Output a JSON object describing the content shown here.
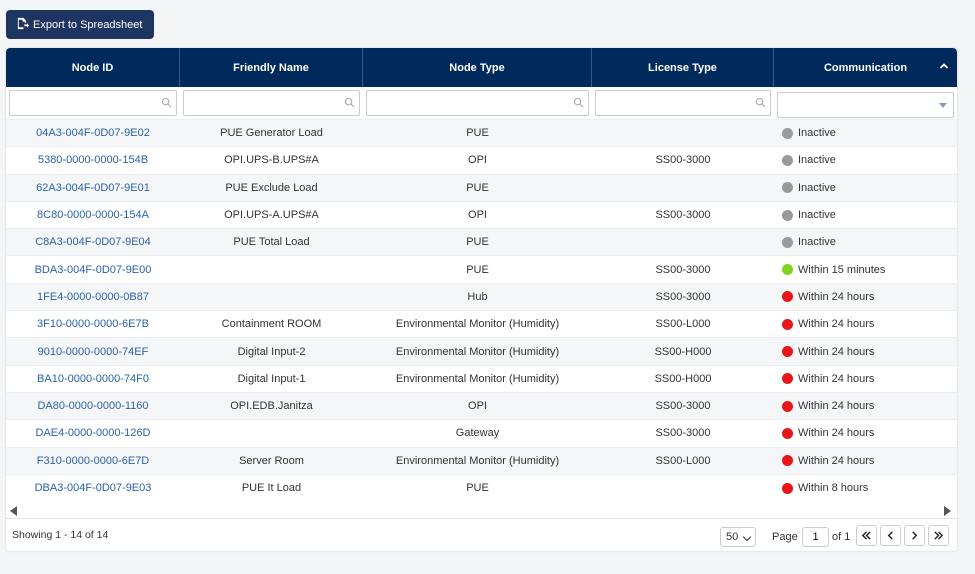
{
  "toolbar": {
    "export_label": "Export to Spreadsheet"
  },
  "columns": [
    {
      "label": "Node ID"
    },
    {
      "label": "Friendly Name"
    },
    {
      "label": "Node Type"
    },
    {
      "label": "License Type"
    },
    {
      "label": "Communication"
    }
  ],
  "status_colors": {
    "Inactive": "#9a9a9a",
    "Within 15 minutes": "#7ed321",
    "Within 24 hours": "#e8161b",
    "Within 8 hours": "#e8161b"
  },
  "rows": [
    {
      "node_id": "04A3-004F-0D07-9E02",
      "friendly_name": "PUE Generator Load",
      "node_type": "PUE",
      "license_type": "",
      "communication": "Inactive",
      "color": "#9a9a9a"
    },
    {
      "node_id": "5380-0000-0000-154B",
      "friendly_name": "OPI.UPS-B.UPS#A",
      "node_type": "OPI",
      "license_type": "SS00-3000",
      "communication": "Inactive",
      "color": "#9a9a9a"
    },
    {
      "node_id": "62A3-004F-0D07-9E01",
      "friendly_name": "PUE Exclude Load",
      "node_type": "PUE",
      "license_type": "",
      "communication": "Inactive",
      "color": "#9a9a9a"
    },
    {
      "node_id": "8C80-0000-0000-154A",
      "friendly_name": "OPI.UPS-A.UPS#A",
      "node_type": "OPI",
      "license_type": "SS00-3000",
      "communication": "Inactive",
      "color": "#9a9a9a"
    },
    {
      "node_id": "C8A3-004F-0D07-9E04",
      "friendly_name": "PUE Total Load",
      "node_type": "PUE",
      "license_type": "",
      "communication": "Inactive",
      "color": "#9a9a9a"
    },
    {
      "node_id": "BDA3-004F-0D07-9E00",
      "friendly_name": "",
      "node_type": "PUE",
      "license_type": "SS00-3000",
      "communication": "Within 15 minutes",
      "color": "#7ed321"
    },
    {
      "node_id": "1FE4-0000-0000-0B87",
      "friendly_name": "",
      "node_type": "Hub",
      "license_type": "SS00-3000",
      "communication": "Within 24 hours",
      "color": "#e8161b"
    },
    {
      "node_id": "3F10-0000-0000-6E7B",
      "friendly_name": "Containment ROOM",
      "node_type": "Environmental Monitor (Humidity)",
      "license_type": "SS00-L000",
      "communication": "Within 24 hours",
      "color": "#e8161b"
    },
    {
      "node_id": "9010-0000-0000-74EF",
      "friendly_name": "Digital Input-2",
      "node_type": "Environmental Monitor (Humidity)",
      "license_type": "SS00-H000",
      "communication": "Within 24 hours",
      "color": "#e8161b"
    },
    {
      "node_id": "BA10-0000-0000-74F0",
      "friendly_name": "Digital Input-1",
      "node_type": "Environmental Monitor (Humidity)",
      "license_type": "SS00-H000",
      "communication": "Within 24 hours",
      "color": "#e8161b"
    },
    {
      "node_id": "DA80-0000-0000-1160",
      "friendly_name": "OPI.EDB.Janitza",
      "node_type": "OPI",
      "license_type": "SS00-3000",
      "communication": "Within 24 hours",
      "color": "#e8161b"
    },
    {
      "node_id": "DAE4-0000-0000-126D",
      "friendly_name": "",
      "node_type": "Gateway",
      "license_type": "SS00-3000",
      "communication": "Within 24 hours",
      "color": "#e8161b"
    },
    {
      "node_id": "F310-0000-0000-6E7D",
      "friendly_name": "Server Room",
      "node_type": "Environmental Monitor (Humidity)",
      "license_type": "SS00-L000",
      "communication": "Within 24 hours",
      "color": "#e8161b"
    },
    {
      "node_id": "DBA3-004F-0D07-9E03",
      "friendly_name": "PUE It Load",
      "node_type": "PUE",
      "license_type": "",
      "communication": "Within 8 hours",
      "color": "#e8161b"
    }
  ],
  "footer": {
    "showing": "Showing 1 - 14 of 14",
    "page_size": "50",
    "page_label": "Page",
    "page_value": "1",
    "of_label": "of 1"
  },
  "icons": {
    "export": "export-spreadsheet-icon",
    "search": "search-icon",
    "sort": "sort-ascending-icon",
    "first": "double-chevron-left-icon",
    "prev": "chevron-left-icon",
    "next": "chevron-right-icon",
    "last": "double-chevron-right-icon"
  }
}
